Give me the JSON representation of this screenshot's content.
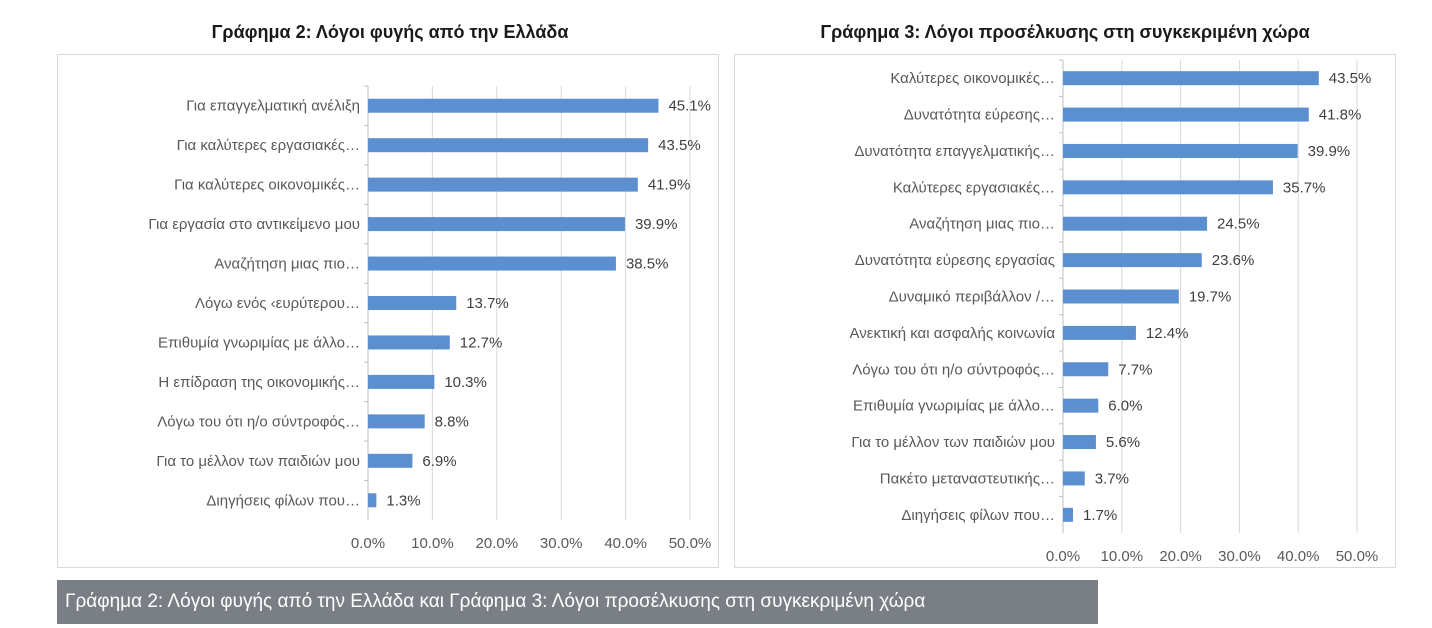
{
  "chart_data": [
    {
      "type": "bar",
      "orientation": "horizontal",
      "title": "Γράφημα 2: Λόγοι φυγής από την Ελλάδα",
      "categories": [
        "Για επαγγελματική ανέλιξη",
        "Για καλύτερες εργασιακές…",
        "Για καλύτερες οικονομικές…",
        "Για εργασία στο αντικείμενο μου",
        "Αναζήτηση μιας πιο…",
        "Λόγω ενός ‹ευρύτερου…",
        "Επιθυμία γνωριμίας με άλλο…",
        "Η επίδραση της οικονομικής…",
        "Λόγω του ότι η/ο σύντροφός…",
        "Για το μέλλον των παιδιών μου",
        "Διηγήσεις φίλων που…"
      ],
      "values": [
        45.1,
        43.5,
        41.9,
        39.9,
        38.5,
        13.7,
        12.7,
        10.3,
        8.8,
        6.9,
        1.3
      ],
      "value_labels": [
        "45.1%",
        "43.5%",
        "41.9%",
        "39.9%",
        "38.5%",
        "13.7%",
        "12.7%",
        "10.3%",
        "8.8%",
        "6.9%",
        "1.3%"
      ],
      "xlim": [
        0,
        50
      ],
      "xticks": [
        "0.0%",
        "10.0%",
        "20.0%",
        "30.0%",
        "40.0%",
        "50.0%"
      ],
      "grid": true,
      "bar_color": "#5b8fd0"
    },
    {
      "type": "bar",
      "orientation": "horizontal",
      "title": "Γράφημα 3: Λόγοι προσέλκυσης στη συγκεκριμένη χώρα",
      "categories": [
        "Καλύτερες οικονομικές…",
        "Δυνατότητα εύρεσης…",
        "Δυνατότητα  επαγγελματικής…",
        "Καλύτερες εργασιακές…",
        "Αναζήτηση μιας πιο…",
        "Δυνατότητα εύρεσης εργασίας",
        "Δυναμικό  περιβάλλον /…",
        "Ανεκτική και ασφαλής κοινωνία",
        "Λόγω του ότι η/ο σύντροφός…",
        "Επιθυμία γνωριμίας με άλλο…",
        "Για το μέλλον των παιδιών μου",
        "Πακέτο μεταναστευτικής…",
        "Διηγήσεις φίλων που…"
      ],
      "values": [
        43.5,
        41.8,
        39.9,
        35.7,
        24.5,
        23.6,
        19.7,
        12.4,
        7.7,
        6.0,
        5.6,
        3.7,
        1.7
      ],
      "value_labels": [
        "43.5%",
        "41.8%",
        "39.9%",
        "35.7%",
        "24.5%",
        "23.6%",
        "19.7%",
        "12.4%",
        "7.7%",
        "6.0%",
        "5.6%",
        "3.7%",
        "1.7%"
      ],
      "xlim": [
        0,
        50
      ],
      "xticks": [
        "0.0%",
        "10.0%",
        "20.0%",
        "30.0%",
        "40.0%",
        "50.0%"
      ],
      "grid": true,
      "bar_color": "#5b8fd0"
    }
  ],
  "caption": "Γράφημα 2: Λόγοι φυγής από την Ελλάδα και Γράφημα 3: Λόγοι προσέλκυσης στη συγκεκριμένη χώρα"
}
